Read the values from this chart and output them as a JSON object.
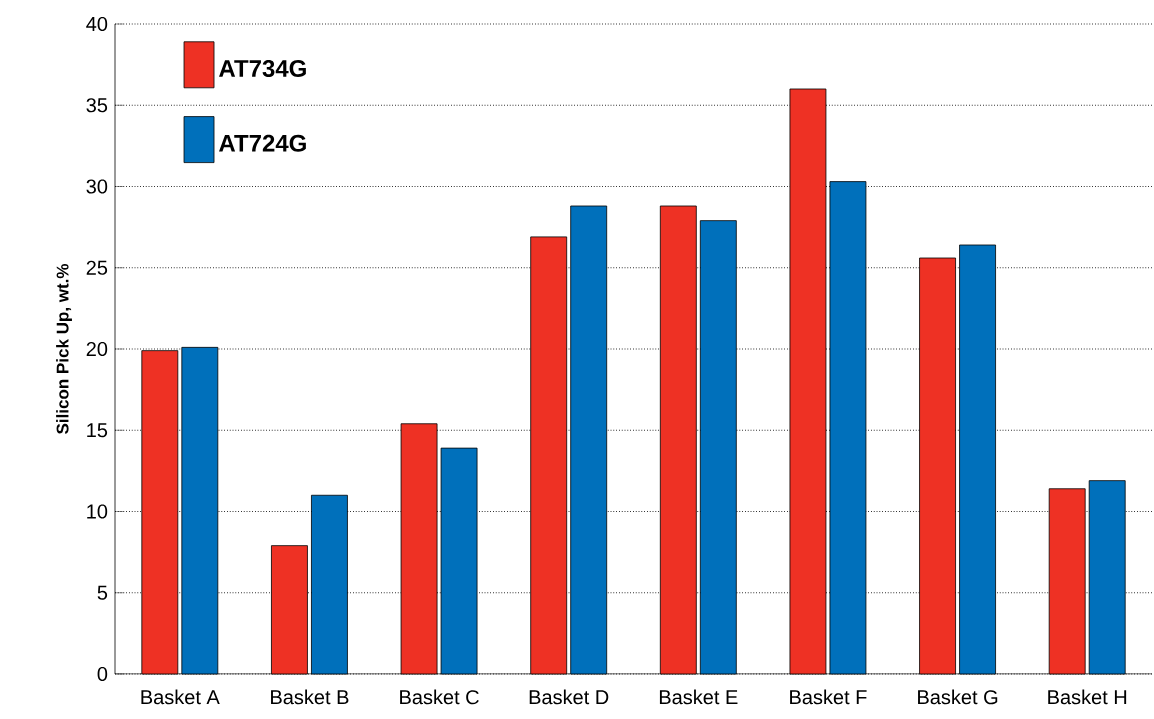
{
  "chart_data": {
    "type": "bar",
    "ylabel": "Silicon Pick Up, wt.%",
    "categories": [
      "Basket A",
      "Basket B",
      "Basket C",
      "Basket D",
      "Basket E",
      "Basket F",
      "Basket G",
      "Basket H"
    ],
    "series": [
      {
        "name": "AT734G",
        "color": "#ee3124",
        "values": [
          19.9,
          7.9,
          15.4,
          26.9,
          28.8,
          36.0,
          25.6,
          11.4
        ]
      },
      {
        "name": "AT724G",
        "color": "#0070bb",
        "values": [
          20.1,
          11.0,
          13.9,
          28.8,
          27.9,
          30.3,
          26.4,
          11.9
        ]
      }
    ],
    "ylim": [
      0,
      40
    ],
    "yticks": [
      0,
      5,
      10,
      15,
      20,
      25,
      30,
      35,
      40
    ],
    "grid": "y",
    "legend": "top left"
  }
}
